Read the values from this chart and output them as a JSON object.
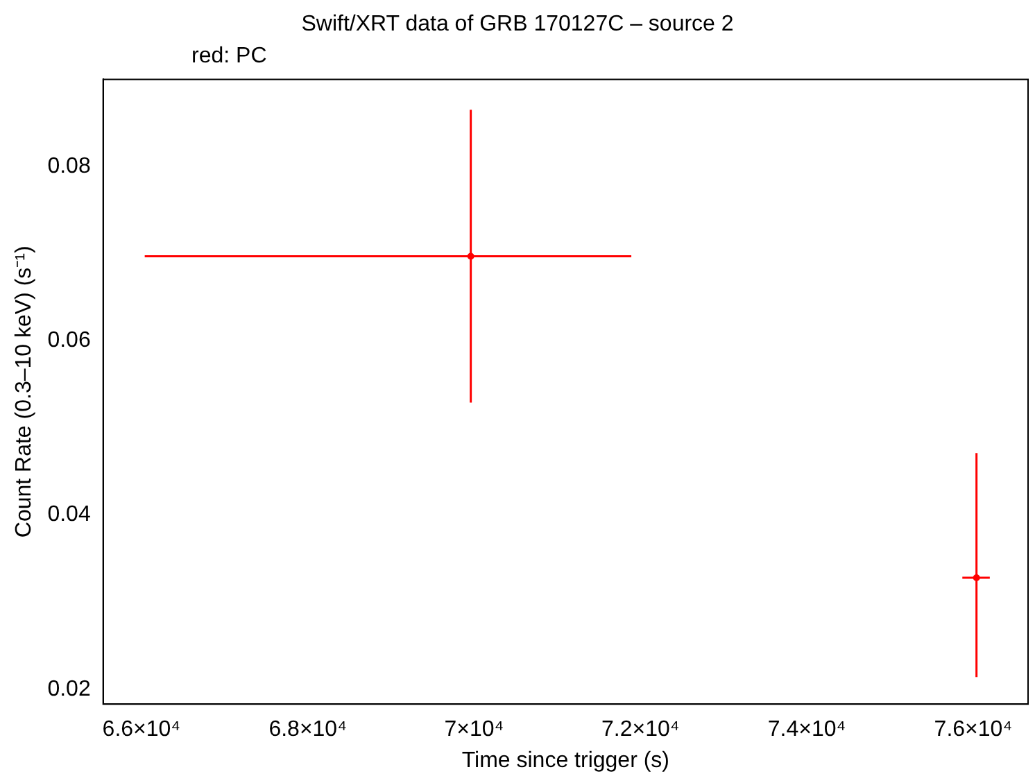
{
  "chart_data": {
    "type": "scatter",
    "title": "Swift/XRT data of GRB 170127C – source 2",
    "xlabel": "Time since trigger (s)",
    "ylabel": "Count Rate (0.3–10 keV) (s⁻¹)",
    "annotations": [
      "red: PC"
    ],
    "x": [
      69960,
      76040
    ],
    "series": [
      {
        "color": "#ff0000",
        "values": [
          0.0697,
          0.0328
        ],
        "errors": [
          [
            0.0529,
            0.0865
          ],
          [
            0.0214,
            0.0471
          ]
        ],
        "xerrors": [
          [
            66040,
            71890
          ],
          [
            75870,
            76200
          ]
        ]
      }
    ],
    "grid": false,
    "legend": false,
    "xlim": [
      65540,
      76660
    ],
    "ylim": [
      0.0183,
      0.09
    ],
    "xticks": [
      {
        "value": 66000,
        "label": "6.6×10⁴"
      },
      {
        "value": 68000,
        "label": "6.8×10⁴"
      },
      {
        "value": 70000,
        "label": "7×10⁴"
      },
      {
        "value": 72000,
        "label": "7.2×10⁴"
      },
      {
        "value": 74000,
        "label": "7.4×10⁴"
      },
      {
        "value": 76000,
        "label": "7.6×10⁴"
      }
    ],
    "yticks": [
      {
        "value": 0.02,
        "label": "0.02"
      },
      {
        "value": 0.04,
        "label": "0.04"
      },
      {
        "value": 0.06,
        "label": "0.06"
      },
      {
        "value": 0.08,
        "label": "0.08"
      }
    ]
  }
}
